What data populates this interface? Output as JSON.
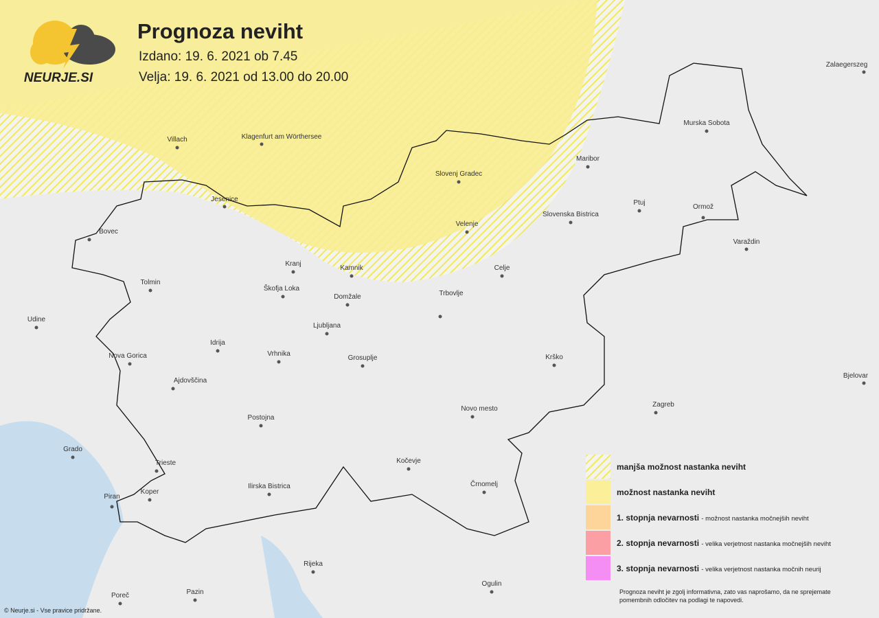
{
  "logo": "NEURJE.SI",
  "header": {
    "title": "Prognoza neviht",
    "issued": "Izdano: 19. 6. 2021 ob 7.45",
    "valid": "Velja: 19. 6. 2021 od 13.00 do 20.00"
  },
  "cities": [
    "Zalaegerszeg",
    "Villach",
    "Klagenfurt am Wörthersee",
    "Murska Sobota",
    "Maribor",
    "Slovenj Gradec",
    "Jesenice",
    "Ptuj",
    "Ormož",
    "Slovenska Bistrica",
    "Velenje",
    "Bovec",
    "Varaždin",
    "Kranj",
    "Kamnik",
    "Celje",
    "Tolmin",
    "Škofja Loka",
    "Domžale",
    "Trbovlje",
    "Udine",
    "Ljubljana",
    "Idrija",
    "Vrhnika",
    "Nova Gorica",
    "Grosuplje",
    "Krško",
    "Bjelovar",
    "Ajdovščina",
    "Zagreb",
    "Novo mesto",
    "Postojna",
    "Grado",
    "Trieste",
    "Kočevje",
    "Ilirska Bistrica",
    "Črnomelj",
    "Piran",
    "Koper",
    "Rijeka",
    "Ogulin",
    "Poreč",
    "Pazin"
  ],
  "legend": [
    {
      "label": "manjša možnost nastanka neviht"
    },
    {
      "label": "možnost nastanka neviht"
    },
    {
      "label": "1. stopnja nevarnosti",
      "desc": "- možnost nastanka močnejših neviht"
    },
    {
      "label": "2. stopnja nevarnosti",
      "desc": "- velika verjetnost nastanka močnejših neviht"
    },
    {
      "label": "3. stopnja nevarnosti",
      "desc": "- velika verjetnost nastanka močnih neurij"
    }
  ],
  "disclaimer": "Prognoza neviht je zgolj informativna, zato vas naprošamo, da ne sprejemate pomembnih odločitev na podlagi te napovedi.",
  "copyright": "© Neurje.si - Vse pravice pridržane."
}
